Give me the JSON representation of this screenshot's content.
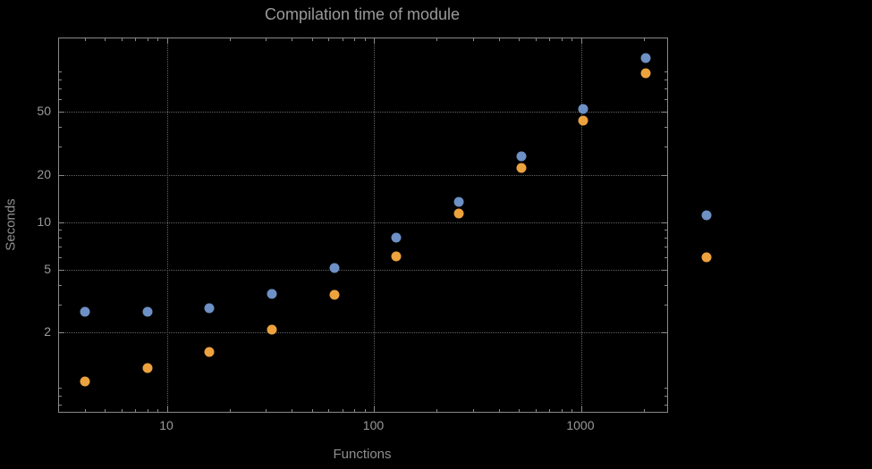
{
  "chart_data": {
    "type": "scatter",
    "title": "Compilation time of module",
    "xlabel": "Functions",
    "ylabel": "Seconds",
    "x_scale": "log",
    "y_scale": "log",
    "xlim": [
      3,
      2600
    ],
    "ylim": [
      0.63,
      146
    ],
    "x_ticks": [
      10,
      100,
      1000
    ],
    "y_ticks": [
      2,
      5,
      10,
      20,
      50
    ],
    "grid": true,
    "x": [
      4,
      8,
      16,
      32,
      64,
      128,
      256,
      512,
      1024,
      2048
    ],
    "series": [
      {
        "name": "series-blue",
        "color": "#6d90c5",
        "values": [
          2.7,
          2.7,
          2.85,
          3.5,
          5.1,
          8.0,
          13.5,
          26,
          52,
          110
        ]
      },
      {
        "name": "series-orange",
        "color": "#eca23d",
        "values": [
          0.98,
          1.2,
          1.5,
          2.1,
          3.45,
          6.1,
          11.3,
          22,
          44,
          88
        ]
      }
    ],
    "legend": {
      "position": "right-outside",
      "markers": [
        {
          "series": "series-blue",
          "color": "#6d90c5",
          "label": ""
        },
        {
          "series": "series-orange",
          "color": "#eca23d",
          "label": ""
        }
      ]
    }
  }
}
